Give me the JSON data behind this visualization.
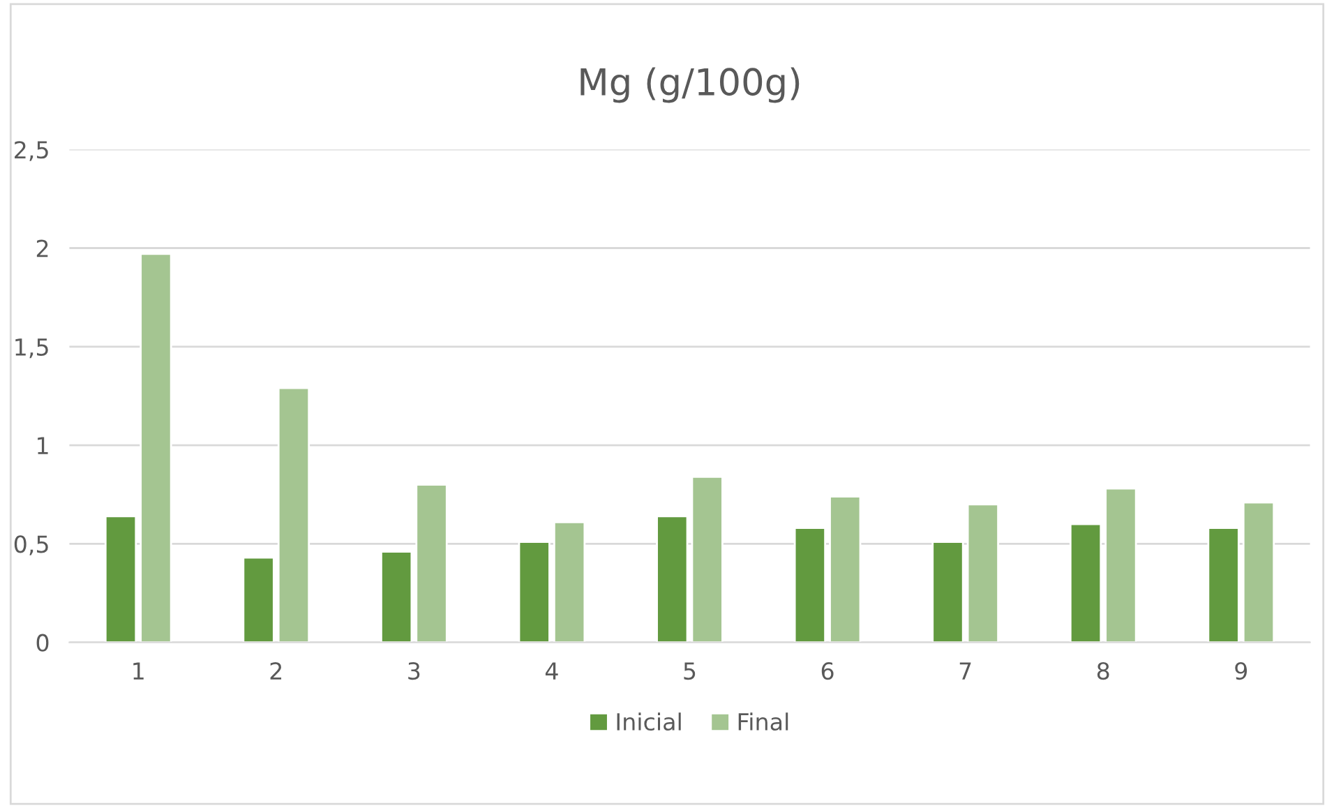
{
  "chart_data": {
    "type": "bar",
    "title": "Mg (g/100g)",
    "categories": [
      "1",
      "2",
      "3",
      "4",
      "5",
      "6",
      "7",
      "8",
      "9"
    ],
    "series": [
      {
        "name": "Inicial",
        "color": "#629a3f",
        "values": [
          0.64,
          0.43,
          0.46,
          0.51,
          0.64,
          0.58,
          0.51,
          0.6,
          0.58
        ]
      },
      {
        "name": "Final",
        "color": "#a4c591",
        "values": [
          1.97,
          1.29,
          0.8,
          0.61,
          0.84,
          0.74,
          0.7,
          0.78,
          0.71
        ]
      }
    ],
    "ylim": [
      0,
      2.5
    ],
    "yticks": [
      0,
      {
        "value": 0.5,
        "label": "0,5"
      },
      1,
      {
        "value": 1.5,
        "label": "1,5"
      },
      2,
      {
        "value": 2.5,
        "label": "2,5"
      }
    ],
    "grid": "y",
    "legend": "bottom"
  }
}
